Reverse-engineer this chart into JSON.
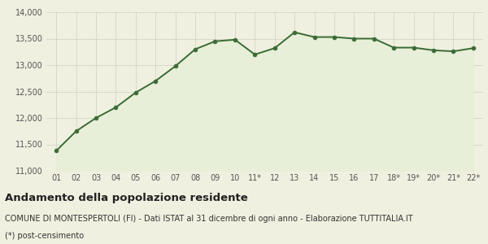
{
  "x_labels": [
    "01",
    "02",
    "03",
    "04",
    "05",
    "06",
    "07",
    "08",
    "09",
    "10",
    "11*",
    "12",
    "13",
    "14",
    "15",
    "16",
    "17",
    "18*",
    "19*",
    "20*",
    "21*",
    "22*"
  ],
  "values": [
    11380,
    11750,
    12000,
    12200,
    12480,
    12700,
    12980,
    13300,
    13450,
    13480,
    13200,
    13320,
    13620,
    13530,
    13530,
    13500,
    13500,
    13330,
    13330,
    13280,
    13260,
    13320
  ],
  "line_color": "#3a6b35",
  "fill_color": "#e8efd8",
  "marker_color": "#3a6b35",
  "bg_color": "#f0f0e0",
  "grid_color": "#d0d0c0",
  "ylim": [
    11000,
    14000
  ],
  "yticks": [
    11000,
    11500,
    12000,
    12500,
    13000,
    13500,
    14000
  ],
  "title": "Andamento della popolazione residente",
  "subtitle": "COMUNE DI MONTESPERTOLI (FI) - Dati ISTAT al 31 dicembre di ogni anno - Elaborazione TUTTITALIA.IT",
  "footnote": "(*) post-censimento",
  "title_fontsize": 9.5,
  "subtitle_fontsize": 7.0,
  "footnote_fontsize": 7.0
}
